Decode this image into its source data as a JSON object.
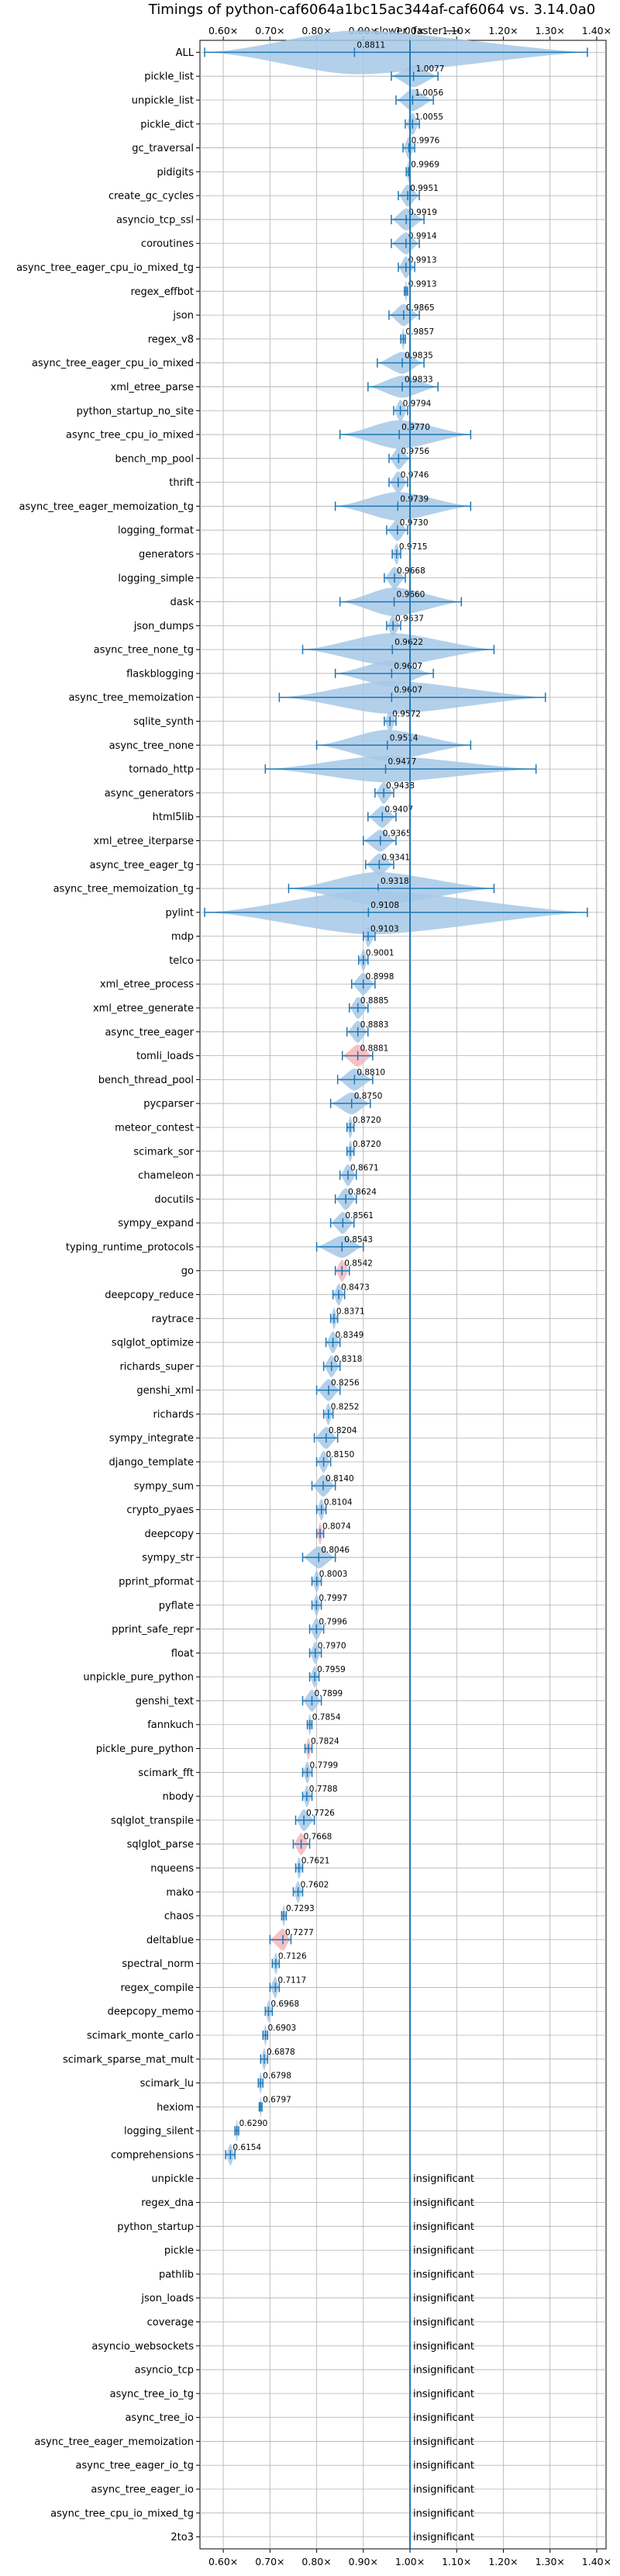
{
  "chart_data": {
    "type": "violin",
    "title": "Timings of python-caf6064a1bc15ac344af-caf6064 vs. 3.14.0a0",
    "subtitle_slower": "⟵ slower",
    "subtitle_faster": "faster ⟶",
    "xlim": [
      0.55,
      1.42
    ],
    "xticks": [
      0.6,
      0.7,
      0.8,
      0.9,
      1.0,
      1.1,
      1.2,
      1.3,
      1.4
    ],
    "xtick_labels": [
      "0.60×",
      "0.70×",
      "0.80×",
      "0.90×",
      "1.00×",
      "1.10×",
      "1.20×",
      "1.30×",
      "1.40×"
    ],
    "reference_line": 1.0,
    "grid": true,
    "insignificant_label": "insignificant",
    "colors": {
      "violin": "#a6c8e6",
      "line": "#1f77b4",
      "highlight": "#f4b6bc",
      "grid": "#b0b0b0"
    },
    "benchmarks": [
      {
        "name": "ALL",
        "value": 0.8811,
        "lo": 0.56,
        "hi": 1.38,
        "shown": "0.8811",
        "peak": 0.89,
        "w": 2.0
      },
      {
        "name": "pickle_list",
        "value": 1.0077,
        "lo": 0.96,
        "hi": 1.06,
        "shown": "1.0077"
      },
      {
        "name": "unpickle_list",
        "value": 1.0056,
        "lo": 0.97,
        "hi": 1.05,
        "shown": "1.0056"
      },
      {
        "name": "pickle_dict",
        "value": 1.0055,
        "lo": 0.99,
        "hi": 1.02,
        "shown": "1.0055"
      },
      {
        "name": "gc_traversal",
        "value": 0.9976,
        "lo": 0.985,
        "hi": 1.01,
        "shown": "0.9976"
      },
      {
        "name": "pidigits",
        "value": 0.9969,
        "lo": 0.992,
        "hi": 1.0,
        "shown": "0.9969"
      },
      {
        "name": "create_gc_cycles",
        "value": 0.9951,
        "lo": 0.975,
        "hi": 1.02,
        "shown": "0.9951"
      },
      {
        "name": "asyncio_tcp_ssl",
        "value": 0.9919,
        "lo": 0.96,
        "hi": 1.03,
        "shown": "0.9919"
      },
      {
        "name": "coroutines",
        "value": 0.9914,
        "lo": 0.96,
        "hi": 1.02,
        "shown": "0.9914"
      },
      {
        "name": "async_tree_eager_cpu_io_mixed_tg",
        "value": 0.9913,
        "lo": 0.975,
        "hi": 1.01,
        "shown": "0.9913"
      },
      {
        "name": "regex_effbot",
        "value": 0.9913,
        "lo": 0.988,
        "hi": 0.995,
        "shown": "0.9913"
      },
      {
        "name": "json",
        "value": 0.9865,
        "lo": 0.955,
        "hi": 1.02,
        "shown": "0.9865"
      },
      {
        "name": "regex_v8",
        "value": 0.9857,
        "lo": 0.98,
        "hi": 0.99,
        "shown": "0.9857"
      },
      {
        "name": "async_tree_eager_cpu_io_mixed",
        "value": 0.9835,
        "lo": 0.93,
        "hi": 1.03,
        "shown": "0.9835"
      },
      {
        "name": "xml_etree_parse",
        "value": 0.9833,
        "lo": 0.91,
        "hi": 1.06,
        "shown": "0.9833"
      },
      {
        "name": "python_startup_no_site",
        "value": 0.9794,
        "lo": 0.965,
        "hi": 0.995,
        "shown": "0.9794"
      },
      {
        "name": "async_tree_cpu_io_mixed",
        "value": 0.977,
        "lo": 0.85,
        "hi": 1.13,
        "shown": "0.9770",
        "w": 1.3
      },
      {
        "name": "bench_mp_pool",
        "value": 0.9756,
        "lo": 0.955,
        "hi": 1.0,
        "shown": "0.9756"
      },
      {
        "name": "thrift",
        "value": 0.9746,
        "lo": 0.955,
        "hi": 0.995,
        "shown": "0.9746"
      },
      {
        "name": "async_tree_eager_memoization_tg",
        "value": 0.9739,
        "lo": 0.84,
        "hi": 1.13,
        "shown": "0.9739",
        "w": 1.3
      },
      {
        "name": "logging_format",
        "value": 0.973,
        "lo": 0.95,
        "hi": 0.995,
        "shown": "0.9730"
      },
      {
        "name": "generators",
        "value": 0.9715,
        "lo": 0.962,
        "hi": 0.98,
        "shown": "0.9715"
      },
      {
        "name": "logging_simple",
        "value": 0.9668,
        "lo": 0.945,
        "hi": 0.99,
        "shown": "0.9668"
      },
      {
        "name": "dask",
        "value": 0.966,
        "lo": 0.85,
        "hi": 1.11,
        "shown": "0.9660",
        "w": 1.3
      },
      {
        "name": "json_dumps",
        "value": 0.9637,
        "lo": 0.95,
        "hi": 0.98,
        "shown": "0.9637"
      },
      {
        "name": "async_tree_none_tg",
        "value": 0.9622,
        "lo": 0.77,
        "hi": 1.18,
        "shown": "0.9622",
        "w": 1.5
      },
      {
        "name": "flaskblogging",
        "value": 0.9607,
        "lo": 0.84,
        "hi": 1.05,
        "shown": "0.9607",
        "w": 1.2
      },
      {
        "name": "async_tree_memoization",
        "value": 0.9607,
        "lo": 0.72,
        "hi": 1.29,
        "shown": "0.9607",
        "w": 1.5
      },
      {
        "name": "sqlite_synth",
        "value": 0.9572,
        "lo": 0.945,
        "hi": 0.97,
        "shown": "0.9572"
      },
      {
        "name": "async_tree_none",
        "value": 0.9514,
        "lo": 0.8,
        "hi": 1.13,
        "shown": "0.9514",
        "w": 1.4
      },
      {
        "name": "tornado_http",
        "value": 0.9477,
        "lo": 0.69,
        "hi": 1.27,
        "shown": "0.9477",
        "w": 1.2
      },
      {
        "name": "async_generators",
        "value": 0.9438,
        "lo": 0.925,
        "hi": 0.965,
        "shown": "0.9438"
      },
      {
        "name": "html5lib",
        "value": 0.9407,
        "lo": 0.91,
        "hi": 0.97,
        "shown": "0.9407"
      },
      {
        "name": "xml_etree_iterparse",
        "value": 0.9365,
        "lo": 0.9,
        "hi": 0.97,
        "shown": "0.9365"
      },
      {
        "name": "async_tree_eager_tg",
        "value": 0.9341,
        "lo": 0.905,
        "hi": 0.965,
        "shown": "0.9341"
      },
      {
        "name": "async_tree_memoization_tg",
        "value": 0.9318,
        "lo": 0.74,
        "hi": 1.18,
        "shown": "0.9318",
        "w": 1.5
      },
      {
        "name": "pylint",
        "value": 0.9108,
        "lo": 0.56,
        "hi": 1.38,
        "shown": "0.9108",
        "peak": 0.92,
        "w": 2.0
      },
      {
        "name": "mdp",
        "value": 0.9103,
        "lo": 0.9,
        "hi": 0.925,
        "shown": "0.9103"
      },
      {
        "name": "telco",
        "value": 0.9001,
        "lo": 0.89,
        "hi": 0.91,
        "shown": "0.9001"
      },
      {
        "name": "xml_etree_process",
        "value": 0.8998,
        "lo": 0.875,
        "hi": 0.925,
        "shown": "0.8998"
      },
      {
        "name": "xml_etree_generate",
        "value": 0.8885,
        "lo": 0.87,
        "hi": 0.91,
        "shown": "0.8885"
      },
      {
        "name": "async_tree_eager",
        "value": 0.8883,
        "lo": 0.865,
        "hi": 0.91,
        "shown": "0.8883"
      },
      {
        "name": "tomli_loads",
        "value": 0.8881,
        "lo": 0.855,
        "hi": 0.92,
        "shown": "0.8881",
        "hl": true
      },
      {
        "name": "bench_thread_pool",
        "value": 0.881,
        "lo": 0.845,
        "hi": 0.92,
        "shown": "0.8810"
      },
      {
        "name": "pycparser",
        "value": 0.875,
        "lo": 0.83,
        "hi": 0.915,
        "shown": "0.8750"
      },
      {
        "name": "meteor_contest",
        "value": 0.872,
        "lo": 0.865,
        "hi": 0.88,
        "shown": "0.8720"
      },
      {
        "name": "scimark_sor",
        "value": 0.872,
        "lo": 0.865,
        "hi": 0.88,
        "shown": "0.8720"
      },
      {
        "name": "chameleon",
        "value": 0.8671,
        "lo": 0.85,
        "hi": 0.885,
        "shown": "0.8671"
      },
      {
        "name": "docutils",
        "value": 0.8624,
        "lo": 0.84,
        "hi": 0.885,
        "shown": "0.8624"
      },
      {
        "name": "sympy_expand",
        "value": 0.8561,
        "lo": 0.83,
        "hi": 0.88,
        "shown": "0.8561"
      },
      {
        "name": "typing_runtime_protocols",
        "value": 0.8543,
        "lo": 0.8,
        "hi": 0.9,
        "shown": "0.8543"
      },
      {
        "name": "go",
        "value": 0.8542,
        "lo": 0.84,
        "hi": 0.87,
        "shown": "0.8542",
        "hl": true
      },
      {
        "name": "deepcopy_reduce",
        "value": 0.8473,
        "lo": 0.835,
        "hi": 0.86,
        "shown": "0.8473"
      },
      {
        "name": "raytrace",
        "value": 0.8371,
        "lo": 0.83,
        "hi": 0.845,
        "shown": "0.8371"
      },
      {
        "name": "sqlglot_optimize",
        "value": 0.8349,
        "lo": 0.82,
        "hi": 0.85,
        "shown": "0.8349"
      },
      {
        "name": "richards_super",
        "value": 0.8318,
        "lo": 0.815,
        "hi": 0.85,
        "shown": "0.8318"
      },
      {
        "name": "genshi_xml",
        "value": 0.8256,
        "lo": 0.8,
        "hi": 0.85,
        "shown": "0.8256"
      },
      {
        "name": "richards",
        "value": 0.8252,
        "lo": 0.815,
        "hi": 0.835,
        "shown": "0.8252"
      },
      {
        "name": "sympy_integrate",
        "value": 0.8204,
        "lo": 0.795,
        "hi": 0.845,
        "shown": "0.8204"
      },
      {
        "name": "django_template",
        "value": 0.815,
        "lo": 0.8,
        "hi": 0.83,
        "shown": "0.8150"
      },
      {
        "name": "sympy_sum",
        "value": 0.814,
        "lo": 0.79,
        "hi": 0.84,
        "shown": "0.8140"
      },
      {
        "name": "crypto_pyaes",
        "value": 0.8104,
        "lo": 0.8,
        "hi": 0.82,
        "shown": "0.8104"
      },
      {
        "name": "deepcopy",
        "value": 0.8074,
        "lo": 0.8,
        "hi": 0.815,
        "shown": "0.8074",
        "hl": true
      },
      {
        "name": "sympy_str",
        "value": 0.8046,
        "lo": 0.77,
        "hi": 0.84,
        "shown": "0.8046"
      },
      {
        "name": "pprint_pformat",
        "value": 0.8003,
        "lo": 0.79,
        "hi": 0.81,
        "shown": "0.8003"
      },
      {
        "name": "pyflate",
        "value": 0.7997,
        "lo": 0.79,
        "hi": 0.81,
        "shown": "0.7997"
      },
      {
        "name": "pprint_safe_repr",
        "value": 0.7996,
        "lo": 0.785,
        "hi": 0.815,
        "shown": "0.7996"
      },
      {
        "name": "float",
        "value": 0.797,
        "lo": 0.785,
        "hi": 0.81,
        "shown": "0.7970"
      },
      {
        "name": "unpickle_pure_python",
        "value": 0.7959,
        "lo": 0.785,
        "hi": 0.805,
        "shown": "0.7959"
      },
      {
        "name": "genshi_text",
        "value": 0.7899,
        "lo": 0.77,
        "hi": 0.81,
        "shown": "0.7899"
      },
      {
        "name": "fannkuch",
        "value": 0.7854,
        "lo": 0.78,
        "hi": 0.79,
        "shown": "0.7854"
      },
      {
        "name": "pickle_pure_python",
        "value": 0.7824,
        "lo": 0.775,
        "hi": 0.79,
        "shown": "0.7824",
        "hl": true
      },
      {
        "name": "scimark_fft",
        "value": 0.7799,
        "lo": 0.77,
        "hi": 0.79,
        "shown": "0.7799"
      },
      {
        "name": "nbody",
        "value": 0.7788,
        "lo": 0.77,
        "hi": 0.79,
        "shown": "0.7788"
      },
      {
        "name": "sqlglot_transpile",
        "value": 0.7726,
        "lo": 0.755,
        "hi": 0.795,
        "shown": "0.7726"
      },
      {
        "name": "sqlglot_parse",
        "value": 0.7668,
        "lo": 0.75,
        "hi": 0.785,
        "shown": "0.7668",
        "hl": true
      },
      {
        "name": "nqueens",
        "value": 0.7621,
        "lo": 0.755,
        "hi": 0.77,
        "shown": "0.7621"
      },
      {
        "name": "mako",
        "value": 0.7602,
        "lo": 0.75,
        "hi": 0.77,
        "shown": "0.7602"
      },
      {
        "name": "chaos",
        "value": 0.7293,
        "lo": 0.725,
        "hi": 0.735,
        "shown": "0.7293"
      },
      {
        "name": "deltablue",
        "value": 0.7277,
        "lo": 0.7,
        "hi": 0.745,
        "shown": "0.7277",
        "hl": true
      },
      {
        "name": "spectral_norm",
        "value": 0.7126,
        "lo": 0.705,
        "hi": 0.72,
        "shown": "0.7126"
      },
      {
        "name": "regex_compile",
        "value": 0.7117,
        "lo": 0.7,
        "hi": 0.72,
        "shown": "0.7117"
      },
      {
        "name": "deepcopy_memo",
        "value": 0.6968,
        "lo": 0.69,
        "hi": 0.705,
        "shown": "0.6968"
      },
      {
        "name": "scimark_monte_carlo",
        "value": 0.6903,
        "lo": 0.685,
        "hi": 0.695,
        "shown": "0.6903"
      },
      {
        "name": "scimark_sparse_mat_mult",
        "value": 0.6878,
        "lo": 0.68,
        "hi": 0.695,
        "shown": "0.6878"
      },
      {
        "name": "scimark_lu",
        "value": 0.6798,
        "lo": 0.675,
        "hi": 0.685,
        "shown": "0.6798"
      },
      {
        "name": "hexiom",
        "value": 0.6797,
        "lo": 0.677,
        "hi": 0.683,
        "shown": "0.6797"
      },
      {
        "name": "logging_silent",
        "value": 0.629,
        "lo": 0.625,
        "hi": 0.633,
        "shown": "0.6290"
      },
      {
        "name": "comprehensions",
        "value": 0.6154,
        "lo": 0.605,
        "hi": 0.625,
        "shown": "0.6154"
      },
      {
        "name": "unpickle",
        "value": null
      },
      {
        "name": "regex_dna",
        "value": null
      },
      {
        "name": "python_startup",
        "value": null
      },
      {
        "name": "pickle",
        "value": null
      },
      {
        "name": "pathlib",
        "value": null
      },
      {
        "name": "json_loads",
        "value": null
      },
      {
        "name": "coverage",
        "value": null
      },
      {
        "name": "asyncio_websockets",
        "value": null
      },
      {
        "name": "asyncio_tcp",
        "value": null
      },
      {
        "name": "async_tree_io_tg",
        "value": null
      },
      {
        "name": "async_tree_io",
        "value": null
      },
      {
        "name": "async_tree_eager_memoization",
        "value": null
      },
      {
        "name": "async_tree_eager_io_tg",
        "value": null
      },
      {
        "name": "async_tree_eager_io",
        "value": null
      },
      {
        "name": "async_tree_cpu_io_mixed_tg",
        "value": null
      },
      {
        "name": "2to3",
        "value": null
      }
    ]
  }
}
